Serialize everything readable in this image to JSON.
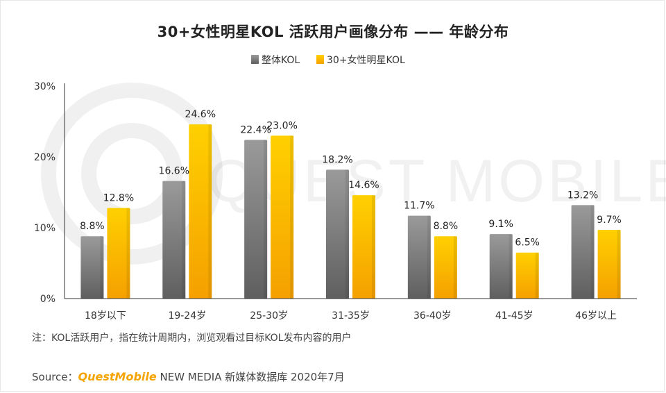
{
  "title": "30+女性明星KOL 活跃用户画像分布 —— 年龄分布",
  "watermark": "QUEST MOBILE",
  "chart_data": {
    "type": "bar",
    "categories": [
      "18岁以下",
      "19-24岁",
      "25-30岁",
      "31-35岁",
      "36-40岁",
      "41-45岁",
      "46岁以上"
    ],
    "series": [
      {
        "name": "整体KOL",
        "values": [
          8.8,
          16.6,
          22.4,
          18.2,
          11.7,
          9.1,
          13.2
        ],
        "labels": [
          "8.8%",
          "16.6%",
          "22.4%",
          "18.2%",
          "11.7%",
          "9.1%",
          "13.2%"
        ]
      },
      {
        "name": "30+女性明星KOL",
        "values": [
          12.8,
          24.6,
          23.0,
          14.6,
          8.8,
          6.5,
          9.7
        ],
        "labels": [
          "12.8%",
          "24.6%",
          "23.0%",
          "14.6%",
          "8.8%",
          "6.5%",
          "9.7%"
        ]
      }
    ],
    "ylim": [
      0,
      30
    ],
    "yticks": [
      "0%",
      "10%",
      "20%",
      "30%"
    ],
    "ytick_values": [
      0,
      10,
      20,
      30
    ],
    "xlabel": "",
    "ylabel": "",
    "legend_position": "top-center"
  },
  "colors": {
    "series_1_top": "#9a9a9a",
    "series_1_bottom": "#5f5f5f",
    "series_2_top": "#ffd000",
    "series_2_bottom": "#f5a000",
    "axis": "#333333"
  },
  "note": "注：KOL活跃用户，指在统计周期内，浏览观看过目标KOL发布内容的用户",
  "source": {
    "label": "Source：",
    "brand": "QuestMobile",
    "rest": " NEW MEDIA 新媒体数据库 2020年7月"
  }
}
